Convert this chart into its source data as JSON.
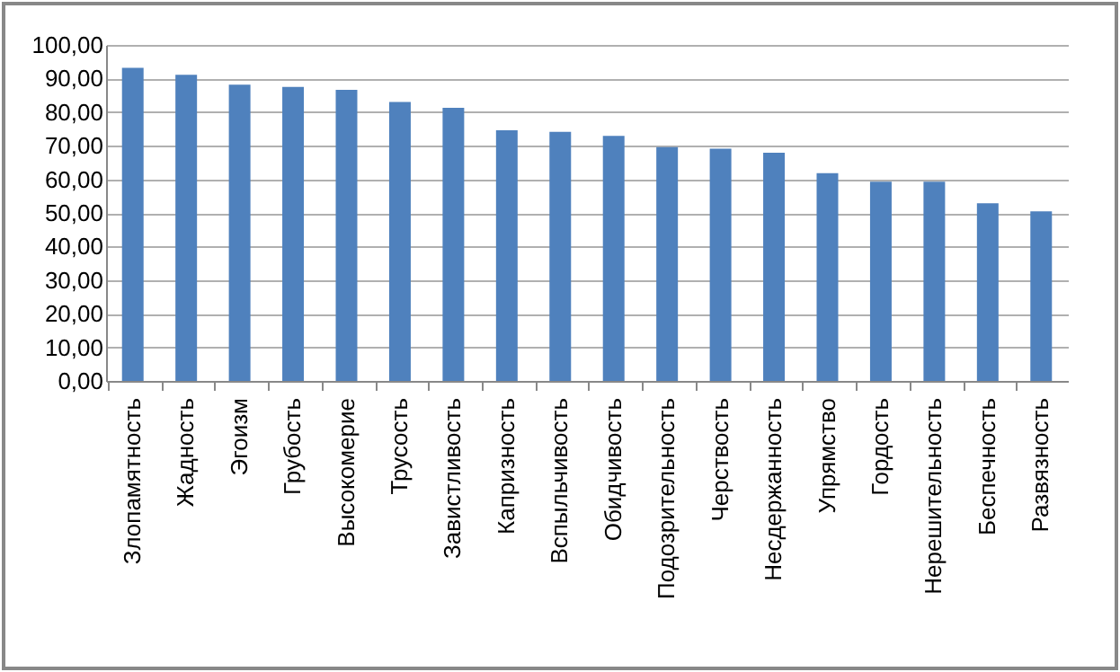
{
  "chart_data": {
    "type": "bar",
    "categories": [
      "Злопамятность",
      "Жадность",
      "Эгоизм",
      "Грубость",
      "Высокомерие",
      "Трусость",
      "Завистливость",
      "Капризность",
      "Вспыльчивость",
      "Обидчивость",
      "Подозрительность",
      "Черствость",
      "Несдержанность",
      "Упрямство",
      "Гордость",
      "Нерешительность",
      "Беспечность",
      "Развязность"
    ],
    "values": [
      93.2,
      91.1,
      88.2,
      87.5,
      86.6,
      83.0,
      81.3,
      74.6,
      74.1,
      72.9,
      69.6,
      69.1,
      67.9,
      61.8,
      59.3,
      59.3,
      52.9,
      50.5
    ],
    "color": "#4f81bd",
    "ylim": [
      0,
      100
    ],
    "yticks": [
      {
        "value": 0,
        "label": "0,00"
      },
      {
        "value": 10,
        "label": "10,00"
      },
      {
        "value": 20,
        "label": "20,00"
      },
      {
        "value": 30,
        "label": "30,00"
      },
      {
        "value": 40,
        "label": "40,00"
      },
      {
        "value": 50,
        "label": "50,00"
      },
      {
        "value": 60,
        "label": "60,00"
      },
      {
        "value": 70,
        "label": "70,00"
      },
      {
        "value": 80,
        "label": "80,00"
      },
      {
        "value": 90,
        "label": "90,00"
      },
      {
        "value": 100,
        "label": "100,00"
      }
    ],
    "grid": true
  }
}
